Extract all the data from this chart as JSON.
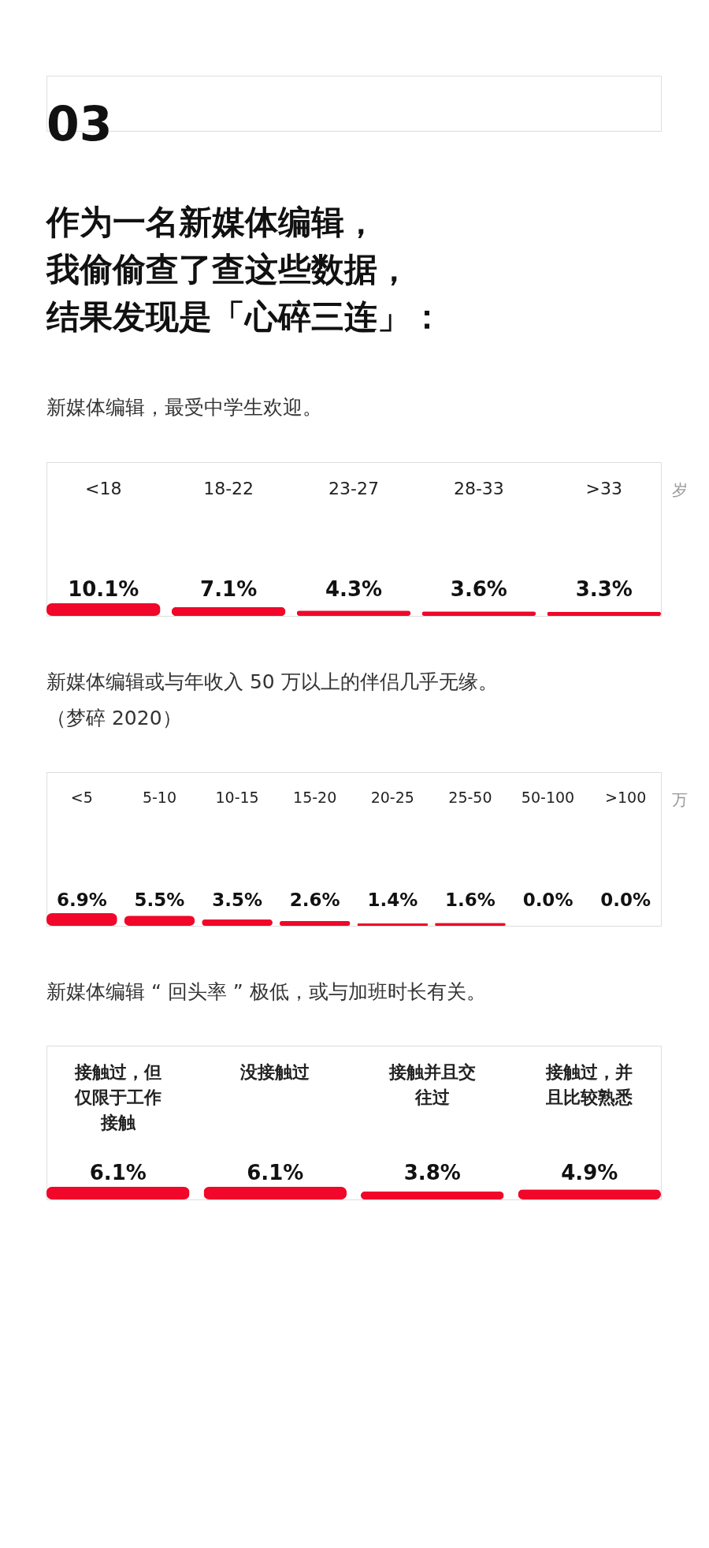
{
  "chart_data": [
    {
      "type": "bar",
      "annotations": [
        "03"
      ],
      "title": "作为一名新媒体编辑，我偷偷查了查这些数据，结果发现是「心碎三连」：",
      "subtitle": "新媒体编辑，最受中学生欢迎。",
      "xlabel": "岁",
      "categories": [
        "<18",
        "18-22",
        "23-27",
        "28-33",
        ">33"
      ],
      "values": [
        10.1,
        7.1,
        4.3,
        3.6,
        3.3
      ],
      "value_labels": [
        "10.1%",
        "7.1%",
        "4.3%",
        "3.6%",
        "3.3%"
      ],
      "color": "#f0072a"
    },
    {
      "type": "bar",
      "subtitle": "新媒体编辑或与年收入 50 万以上的伴侣几乎无缘。（梦碎 2020）",
      "xlabel": "万",
      "categories": [
        "<5",
        "5-10",
        "10-15",
        "15-20",
        "20-25",
        "25-50",
        "50-100",
        ">100"
      ],
      "values": [
        6.9,
        5.5,
        3.5,
        2.6,
        1.4,
        1.6,
        0.0,
        0.0
      ],
      "value_labels": [
        "6.9%",
        "5.5%",
        "3.5%",
        "2.6%",
        "1.4%",
        "1.6%",
        "0.0%",
        "0.0%"
      ],
      "color": "#f0072a"
    },
    {
      "type": "bar",
      "subtitle": "新媒体编辑 “ 回头率 ” 极低，或与加班时长有关。",
      "categories": [
        "接触过，但仅限于工作接触",
        "没接触过",
        "接触并且交往过",
        "接触过，并且比较熟悉"
      ],
      "values": [
        6.1,
        6.1,
        3.8,
        4.9
      ],
      "value_labels": [
        "6.1%",
        "6.1%",
        "3.8%",
        "4.9%"
      ],
      "color": "#f0072a"
    }
  ]
}
